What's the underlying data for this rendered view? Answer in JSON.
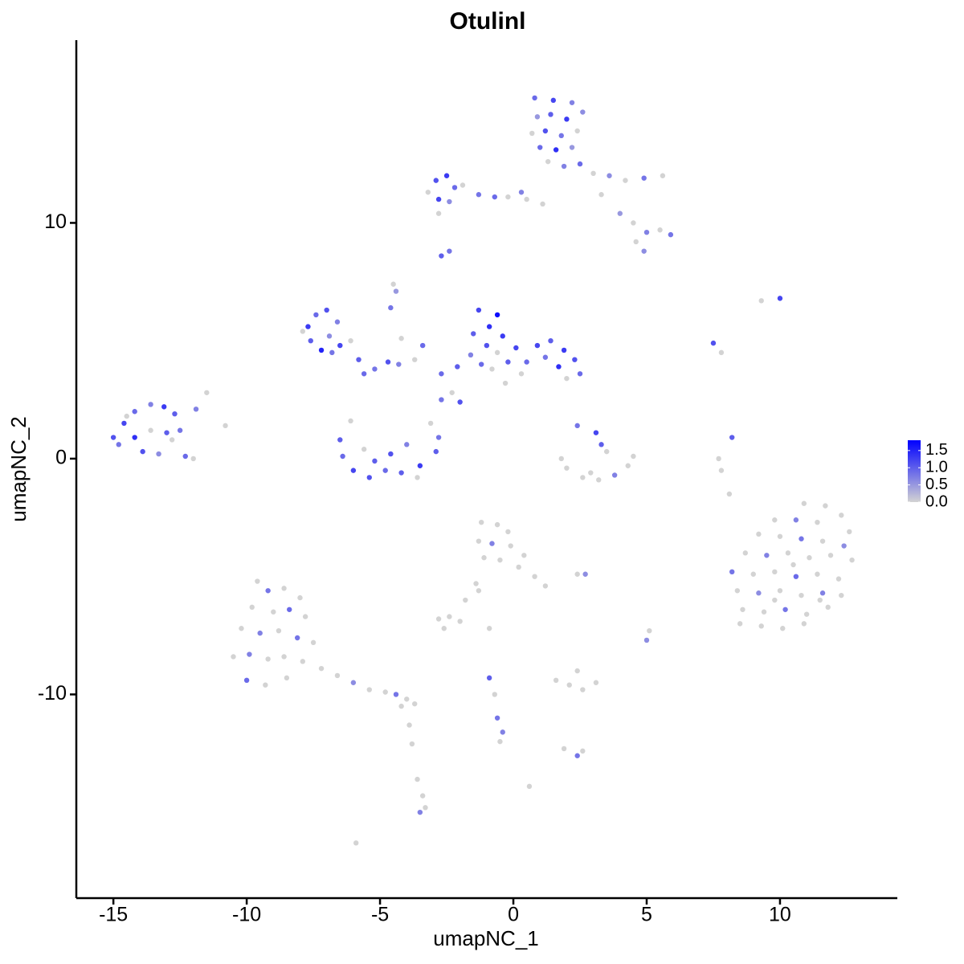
{
  "chart_data": {
    "type": "scatter",
    "title": "Otulinl",
    "x_label": "umapNC_1",
    "y_label": "umapNC_2",
    "xlim": [
      -16.39,
      14.4
    ],
    "ylim": [
      -18.64,
      17.75
    ],
    "xticks": [
      -15,
      -10,
      -5,
      0,
      5,
      10
    ],
    "yticks": [
      -10,
      0,
      10
    ],
    "color_low": "#d3d3d3",
    "color_high": "#0000ff",
    "colorbar": {
      "lim": [
        0,
        1.8
      ],
      "ticks": [
        {
          "value": 0,
          "label": "0.0"
        },
        0.5,
        {
          "value": 1,
          "label": "1.0"
        },
        1.5
      ]
    },
    "x": [
      0.8,
      1.5,
      2.2,
      0.9,
      1.4,
      2.0,
      2.6,
      0.7,
      1.2,
      1.8,
      2.4,
      1.0,
      1.6,
      2.2,
      1.3,
      1.9,
      2.5,
      3.0,
      3.6,
      4.2,
      4.9,
      5.6,
      3.3,
      4.0,
      4.5,
      5.0,
      5.5,
      5.9,
      4.6,
      4.9,
      -3.2,
      -2.9,
      -2.5,
      -2.2,
      -2.8,
      -2.4,
      -1.9,
      -1.3,
      -0.7,
      -0.2,
      0.3,
      0.5,
      1.1,
      -2.8,
      -2.7,
      -2.4,
      -4.5,
      -4.4,
      9.3,
      10.0,
      7.5,
      7.8,
      -7.7,
      -7.4,
      -7.0,
      -6.6,
      -7.6,
      -7.2,
      -6.8,
      -6.5,
      -7.9,
      -6.9,
      -5.8,
      -5.2,
      -4.7,
      -4.3,
      -3.7,
      -3.4,
      -4.6,
      -4.2,
      -2.7,
      -2.3,
      -2.0,
      -2.7,
      -6.1,
      -5.6,
      -1.3,
      -0.6,
      -0.9,
      -1.5,
      -0.4,
      -1.0,
      -1.6,
      -0.6,
      -0.2,
      -1.2,
      0.1,
      -0.8,
      -2.1,
      0.5,
      0.9,
      1.4,
      1.9,
      2.3,
      2.5,
      1.7,
      1.2,
      2.0,
      0.3,
      -0.3,
      -15.0,
      -14.6,
      -14.2,
      -13.6,
      -13.1,
      -12.7,
      -14.8,
      -14.2,
      -13.6,
      -13.0,
      -13.9,
      -13.3,
      -12.8,
      -12.3,
      -12.0,
      -11.9,
      -11.5,
      -10.8,
      -12.5,
      -14.5,
      -6.5,
      -6.4,
      -6.0,
      -5.4,
      -4.8,
      -4.2,
      -3.5,
      -2.9,
      -2.8,
      -3.1,
      -6.1,
      -5.6,
      -4.6,
      -4.0,
      -5.2,
      -3.6,
      2.4,
      3.1,
      3.3,
      3.5,
      2.0,
      2.6,
      3.2,
      3.8,
      4.3,
      4.5,
      1.8,
      2.9,
      8.2,
      7.7,
      7.8,
      8.1,
      10.9,
      11.7,
      12.3,
      9.8,
      10.6,
      11.4,
      12.6,
      9.2,
      10.0,
      10.8,
      11.6,
      12.4,
      8.7,
      9.5,
      10.3,
      11.1,
      11.9,
      12.7,
      8.2,
      9.0,
      9.8,
      10.6,
      11.4,
      12.2,
      8.4,
      9.2,
      10.0,
      10.8,
      11.6,
      12.3,
      8.6,
      9.4,
      10.2,
      11.0,
      11.8,
      8.5,
      9.3,
      10.1,
      10.9,
      9.8,
      10.5,
      11.5,
      -9.6,
      -9.2,
      -8.6,
      -8.0,
      -9.8,
      -9.0,
      -8.4,
      -7.8,
      -10.2,
      -9.5,
      -8.8,
      -8.1,
      -7.5,
      -10.5,
      -9.9,
      -9.2,
      -8.6,
      -7.9,
      -10.0,
      -9.3,
      -8.5,
      -7.2,
      -6.6,
      -6.0,
      -5.4,
      -4.8,
      -4.4,
      -4.0,
      -3.7,
      -4.2,
      -3.9,
      -3.8,
      -3.6,
      -3.4,
      -3.5,
      -3.3,
      -5.9,
      -1.2,
      -0.6,
      -0.2,
      -1.3,
      -0.8,
      -0.1,
      0.4,
      -1.1,
      -0.5,
      0.2,
      0.8,
      1.2,
      -1.4,
      -1.8,
      -1.3,
      -2.8,
      -2.4,
      -2.0,
      -2.6,
      2.4,
      2.7,
      -0.9,
      -0.7,
      -0.6,
      -0.4,
      -0.5,
      1.6,
      2.1,
      2.6,
      3.1,
      2.4,
      1.9,
      2.4,
      2.6,
      0.6,
      -0.9,
      5.1,
      5.0
    ],
    "y": [
      15.3,
      15.2,
      15.1,
      14.5,
      14.6,
      14.4,
      14.7,
      13.8,
      13.9,
      13.7,
      13.9,
      13.2,
      13.1,
      13.2,
      12.6,
      12.4,
      12.5,
      12.1,
      12.0,
      11.8,
      11.9,
      12.0,
      11.2,
      10.4,
      10.0,
      9.6,
      9.7,
      9.5,
      9.2,
      8.8,
      11.3,
      11.8,
      12.0,
      11.5,
      11.0,
      10.9,
      11.6,
      11.2,
      11.1,
      11.1,
      11.3,
      11.0,
      10.8,
      10.4,
      8.6,
      8.8,
      7.4,
      7.1,
      6.7,
      6.8,
      4.9,
      4.5,
      5.6,
      6.1,
      6.3,
      5.8,
      5.0,
      4.6,
      4.5,
      4.8,
      5.4,
      5.2,
      4.2,
      3.8,
      4.1,
      4.0,
      4.2,
      4.8,
      6.4,
      5.1,
      3.6,
      2.8,
      2.4,
      2.5,
      5.0,
      3.6,
      6.3,
      6.1,
      5.6,
      5.3,
      5.2,
      4.8,
      4.4,
      4.5,
      4.1,
      4.0,
      4.7,
      3.8,
      3.9,
      4.1,
      4.8,
      5.0,
      4.6,
      4.2,
      3.6,
      3.9,
      4.3,
      3.4,
      3.6,
      3.2,
      0.9,
      1.5,
      2.0,
      2.3,
      2.2,
      1.9,
      0.6,
      0.9,
      1.2,
      1.1,
      0.3,
      0.2,
      0.8,
      0.1,
      0,
      2.1,
      2.8,
      1.4,
      1.2,
      1.8,
      0.8,
      0.1,
      -0.5,
      -0.8,
      -0.5,
      -0.6,
      -0.3,
      0.3,
      0.9,
      1.5,
      1.6,
      0.4,
      0.2,
      0.6,
      -0.1,
      -0.8,
      1.4,
      1.1,
      0.6,
      0.3,
      -0.4,
      -0.8,
      -0.9,
      -0.7,
      -0.3,
      0.1,
      0,
      -0.6,
      0.9,
      0,
      -0.5,
      -1.5,
      -1.9,
      -2.0,
      -2.4,
      -2.6,
      -2.6,
      -2.7,
      -3.1,
      -3.2,
      -3.3,
      -3.4,
      -3.5,
      -3.7,
      -4.0,
      -4.1,
      -4.0,
      -4.2,
      -4.1,
      -4.3,
      -4.8,
      -4.9,
      -4.8,
      -5.0,
      -4.9,
      -5.1,
      -5.6,
      -5.7,
      -5.6,
      -5.8,
      -5.7,
      -5.8,
      -6.4,
      -6.5,
      -6.4,
      -6.6,
      -6.3,
      -7.0,
      -7.1,
      -7.2,
      -7.0,
      -6.0,
      -4.5,
      -6.0,
      -5.2,
      -5.6,
      -5.5,
      -5.9,
      -6.3,
      -6.5,
      -6.4,
      -6.7,
      -7.2,
      -7.4,
      -7.3,
      -7.6,
      -7.8,
      -8.4,
      -8.3,
      -8.5,
      -8.4,
      -8.6,
      -9.4,
      -9.6,
      -9.3,
      -8.9,
      -9.2,
      -9.5,
      -9.8,
      -9.9,
      -10.0,
      -10.2,
      -10.4,
      -10.5,
      -11.3,
      -12.1,
      -13.6,
      -14.3,
      -15.0,
      -14.8,
      -16.3,
      -2.7,
      -2.8,
      -3.1,
      -3.5,
      -3.6,
      -3.7,
      -4.1,
      -4.2,
      -4.3,
      -4.6,
      -5.0,
      -5.4,
      -5.3,
      -6.0,
      -5.6,
      -6.8,
      -6.7,
      -6.9,
      -7.2,
      -4.9,
      -4.9,
      -9.3,
      -10.0,
      -11.0,
      -11.6,
      -12.0,
      -9.4,
      -9.6,
      -9.8,
      -9.5,
      -9.0,
      -12.3,
      -12.6,
      -12.4,
      -13.9,
      -7.2,
      -7.3,
      -7.7
    ],
    "values": [
      0.9,
      1.2,
      0.7,
      0.5,
      1.0,
      1.3,
      0.6,
      0,
      1.1,
      0.8,
      0,
      0.9,
      1.4,
      0.5,
      0,
      0.7,
      0.9,
      0,
      0.6,
      0,
      0.8,
      0,
      0,
      0.5,
      0,
      0.7,
      0,
      0.8,
      0,
      0.6,
      0,
      1.1,
      1.3,
      0.9,
      1.2,
      0.6,
      0,
      0.8,
      0.9,
      0,
      0.7,
      0,
      0,
      0,
      1.0,
      0.8,
      0,
      0.5,
      0,
      1.2,
      1.1,
      0,
      1.3,
      0.9,
      1.1,
      0.7,
      1.0,
      1.5,
      0.8,
      1.2,
      0,
      0.6,
      1.0,
      0.8,
      1.1,
      0.7,
      0,
      0.9,
      0.8,
      0,
      0.9,
      0,
      1.1,
      0.8,
      0,
      0.9,
      1.2,
      1.7,
      1.4,
      1.0,
      1.3,
      1.1,
      0.7,
      0,
      1.0,
      0.9,
      1.2,
      0,
      1.0,
      0.9,
      1.2,
      1.0,
      1.3,
      1.1,
      0.9,
      1.4,
      0.8,
      0,
      0,
      0,
      1.1,
      1.2,
      0.9,
      0.7,
      1.3,
      1.0,
      0.8,
      1.4,
      0,
      1.0,
      1.1,
      0.6,
      0,
      0.9,
      0,
      0.7,
      0,
      0,
      0.8,
      0,
      1.0,
      0.9,
      1.2,
      1.1,
      0.9,
      1.0,
      1.3,
      1.0,
      0.8,
      0,
      0,
      0,
      1.1,
      0.7,
      1.0,
      0,
      0.8,
      1.2,
      1.0,
      0,
      0,
      0,
      0,
      0.7,
      0,
      0,
      0,
      0,
      1.0,
      0,
      0,
      0,
      0,
      0,
      0,
      0,
      0.7,
      0,
      0,
      0,
      0,
      0.8,
      0,
      0.6,
      0,
      0.7,
      0,
      0,
      0,
      0,
      0.8,
      0,
      0,
      0.9,
      0,
      0,
      0,
      0.6,
      0,
      0,
      0.7,
      0,
      0,
      0,
      0.8,
      0,
      0,
      0,
      0,
      0,
      0,
      0,
      0,
      0,
      0,
      0.8,
      0,
      0,
      0,
      0,
      0.9,
      0,
      0,
      0.7,
      0,
      0.8,
      0,
      0,
      0.7,
      0,
      0,
      0,
      0.9,
      0,
      0,
      0,
      0,
      0.6,
      0,
      0,
      0.8,
      0,
      0,
      0,
      0,
      0,
      0,
      0,
      0.7,
      0,
      0,
      0,
      0,
      0,
      0,
      0.7,
      0,
      0,
      0,
      0,
      0,
      0,
      0,
      0,
      0,
      0,
      0,
      0,
      0,
      0,
      0,
      0.6,
      1.0,
      0,
      0.8,
      0.7,
      0,
      0,
      0,
      0,
      0,
      0,
      0,
      0.8,
      0,
      0,
      0,
      0,
      0.6
    ]
  }
}
